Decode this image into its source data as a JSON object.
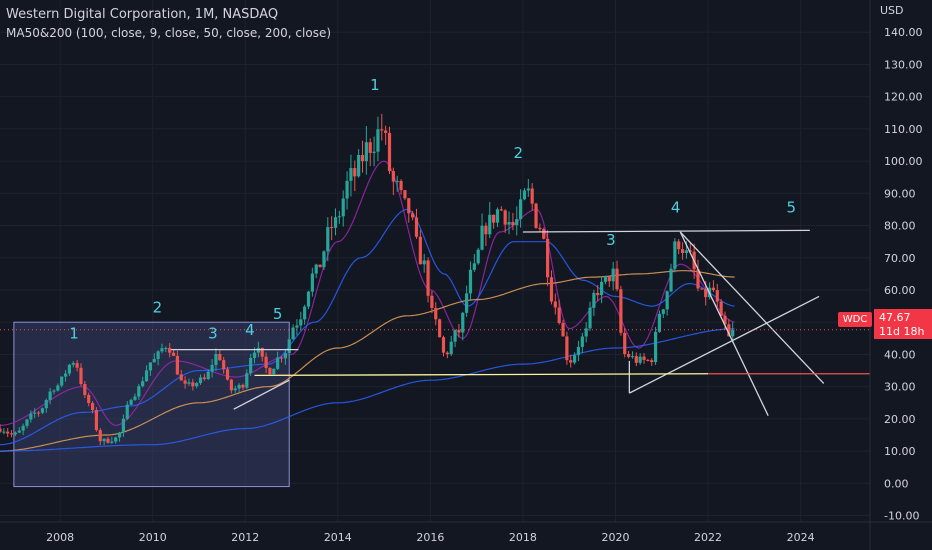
{
  "header": {
    "title": "Western Digital Corporation, 1M, NASDAQ",
    "indicator": "MA50&200 (100, close, 9, close, 50, close, 200, close)"
  },
  "axis": {
    "currency": "USD",
    "y_ticks": [
      "-10.00",
      "0.00",
      "10.00",
      "20.00",
      "30.00",
      "40.00",
      "50.00",
      "60.00",
      "70.00",
      "80.00",
      "90.00",
      "100.00",
      "110.00",
      "120.00",
      "130.00",
      "140.00"
    ],
    "x_ticks": [
      "2008",
      "2010",
      "2012",
      "2014",
      "2016",
      "2018",
      "2020",
      "2022",
      "2024"
    ]
  },
  "price_badge": {
    "symbol": "WDC",
    "price": "47.67",
    "countdown": "11d 18h"
  },
  "colors": {
    "background": "#131722",
    "up": "#26a69a",
    "down": "#ef5350",
    "ma_purple": "#9c27b0",
    "ma_teal": "#2962ff",
    "ma_orange": "#e6a15a",
    "support_yellow": "#fff59d",
    "box_fill": "#4a4f8c"
  },
  "chart_data": {
    "type": "candlestick",
    "ylim": [
      -12,
      150
    ],
    "xlim": [
      2006.7,
      2025.5
    ],
    "waypoints": [
      [
        2006.7,
        17
      ],
      [
        2007.0,
        15
      ],
      [
        2007.5,
        22
      ],
      [
        2007.9,
        30
      ],
      [
        2008.3,
        38
      ],
      [
        2008.6,
        25
      ],
      [
        2008.9,
        13
      ],
      [
        2009.2,
        14
      ],
      [
        2009.6,
        28
      ],
      [
        2010.0,
        38
      ],
      [
        2010.3,
        43
      ],
      [
        2010.7,
        30
      ],
      [
        2011.1,
        32
      ],
      [
        2011.4,
        40
      ],
      [
        2011.7,
        29
      ],
      [
        2011.9,
        30
      ],
      [
        2012.2,
        42
      ],
      [
        2012.5,
        35
      ],
      [
        2012.8,
        40
      ],
      [
        2013.1,
        50
      ],
      [
        2013.5,
        65
      ],
      [
        2013.9,
        80
      ],
      [
        2014.3,
        95
      ],
      [
        2014.7,
        105
      ],
      [
        2014.95,
        110
      ],
      [
        2015.2,
        93
      ],
      [
        2015.5,
        85
      ],
      [
        2015.8,
        70
      ],
      [
        2016.1,
        50
      ],
      [
        2016.3,
        40
      ],
      [
        2016.6,
        47
      ],
      [
        2016.9,
        65
      ],
      [
        2017.2,
        80
      ],
      [
        2017.5,
        85
      ],
      [
        2017.8,
        80
      ],
      [
        2018.1,
        90
      ],
      [
        2018.35,
        80
      ],
      [
        2018.7,
        55
      ],
      [
        2019.0,
        38
      ],
      [
        2019.3,
        45
      ],
      [
        2019.6,
        60
      ],
      [
        2019.95,
        65
      ],
      [
        2020.2,
        40
      ],
      [
        2020.5,
        38
      ],
      [
        2020.75,
        38
      ],
      [
        2021.0,
        55
      ],
      [
        2021.35,
        75
      ],
      [
        2021.6,
        70
      ],
      [
        2021.85,
        58
      ],
      [
        2022.1,
        60
      ],
      [
        2022.3,
        50
      ],
      [
        2022.5,
        44
      ],
      [
        2022.6,
        47.67
      ]
    ],
    "moving_averages": [
      {
        "color": "#9c27b0",
        "points": [
          [
            2006.7,
            18
          ],
          [
            2008.5,
            30
          ],
          [
            2009.2,
            18
          ],
          [
            2010.5,
            38
          ],
          [
            2011.8,
            33
          ],
          [
            2013.0,
            40
          ],
          [
            2014.0,
            75
          ],
          [
            2015.0,
            100
          ],
          [
            2016.0,
            60
          ],
          [
            2016.7,
            45
          ],
          [
            2017.5,
            78
          ],
          [
            2018.3,
            85
          ],
          [
            2019.0,
            48
          ],
          [
            2019.8,
            58
          ],
          [
            2020.5,
            42
          ],
          [
            2021.4,
            68
          ],
          [
            2022.6,
            50
          ]
        ]
      },
      {
        "color": "#2962ff",
        "points": [
          [
            2006.7,
            12
          ],
          [
            2008.5,
            22
          ],
          [
            2009.5,
            24
          ],
          [
            2011.0,
            35
          ],
          [
            2012.5,
            37
          ],
          [
            2013.5,
            50
          ],
          [
            2014.5,
            70
          ],
          [
            2015.5,
            85
          ],
          [
            2016.3,
            65
          ],
          [
            2016.8,
            55
          ],
          [
            2017.8,
            75
          ],
          [
            2018.5,
            75
          ],
          [
            2019.3,
            63
          ],
          [
            2020.0,
            58
          ],
          [
            2020.8,
            55
          ],
          [
            2021.6,
            62
          ],
          [
            2022.6,
            55
          ]
        ]
      },
      {
        "color": "#e6a15a",
        "points": [
          [
            2006.7,
            10
          ],
          [
            2009.0,
            15
          ],
          [
            2011.0,
            25
          ],
          [
            2012.5,
            30
          ],
          [
            2014.0,
            42
          ],
          [
            2015.5,
            52
          ],
          [
            2017.0,
            57
          ],
          [
            2018.5,
            62
          ],
          [
            2019.5,
            64
          ],
          [
            2020.5,
            65
          ],
          [
            2021.5,
            66
          ],
          [
            2022.6,
            64
          ]
        ]
      },
      {
        "color": "#2962ff",
        "points": [
          [
            2006.7,
            10
          ],
          [
            2010.0,
            12
          ],
          [
            2012.0,
            17
          ],
          [
            2014.0,
            25
          ],
          [
            2016.0,
            32
          ],
          [
            2018.0,
            37
          ],
          [
            2020.0,
            42
          ],
          [
            2022.6,
            48
          ]
        ]
      }
    ],
    "annotations": {
      "box": {
        "x1": 2007.0,
        "x2": 2012.95,
        "y1": -1,
        "y2": 50
      },
      "lines": [
        {
          "color": "#d1d4dc",
          "points": [
            [
              2010.4,
              41.5
            ],
            [
              2013.15,
              41.5
            ]
          ]
        },
        {
          "color": "#d1d4dc",
          "points": [
            [
              2011.75,
              23
            ],
            [
              2012.95,
              32
            ]
          ]
        },
        {
          "color": "#d1d4dc",
          "points": [
            [
              2018.0,
              78
            ],
            [
              2024.2,
              78.5
            ]
          ]
        },
        {
          "color": "#d1d4dc",
          "points": [
            [
              2021.4,
              78
            ],
            [
              2024.5,
              31
            ]
          ]
        },
        {
          "color": "#d1d4dc",
          "points": [
            [
              2021.4,
              78
            ],
            [
              2023.3,
              21
            ]
          ]
        },
        {
          "color": "#d1d4dc",
          "points": [
            [
              2020.3,
              28
            ],
            [
              2024.4,
              58
            ]
          ]
        },
        {
          "color": "#d1d4dc",
          "points": [
            [
              2020.3,
              28
            ],
            [
              2020.3,
              38
            ]
          ]
        },
        {
          "color": "#fff59d",
          "points": [
            [
              2012.2,
              33.5
            ],
            [
              2022.0,
              34
            ]
          ]
        },
        {
          "color": "#ef5350",
          "points": [
            [
              2022.0,
              34
            ],
            [
              2025.5,
              34
            ]
          ]
        }
      ],
      "wave_labels": [
        {
          "text": "1",
          "x": 2008.3,
          "y": 45
        },
        {
          "text": "2",
          "x": 2010.1,
          "y": 53
        },
        {
          "text": "3",
          "x": 2011.3,
          "y": 45
        },
        {
          "text": "4",
          "x": 2012.1,
          "y": 46
        },
        {
          "text": "5",
          "x": 2012.7,
          "y": 51
        },
        {
          "text": "1",
          "x": 2014.8,
          "y": 122
        },
        {
          "text": "2",
          "x": 2017.9,
          "y": 101
        },
        {
          "text": "3",
          "x": 2019.9,
          "y": 74
        },
        {
          "text": "4",
          "x": 2021.3,
          "y": 84
        },
        {
          "text": "5",
          "x": 2023.8,
          "y": 84
        }
      ]
    }
  }
}
